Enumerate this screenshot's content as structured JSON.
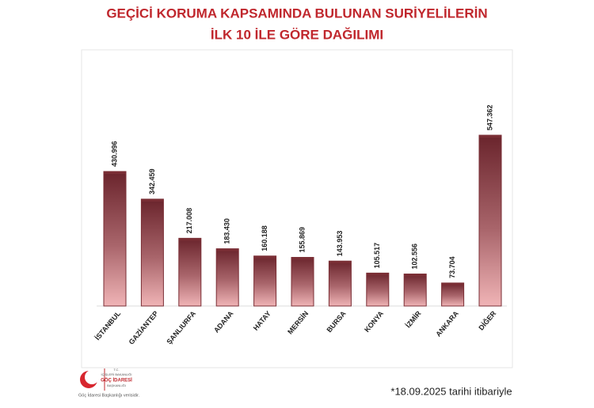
{
  "chart_data": {
    "type": "bar",
    "title": [
      "GEÇİCİ KORUMA KAPSAMINDA BULUNAN SURİYELİLERİN",
      "İLK 10 İLE GÖRE DAĞILIMI"
    ],
    "categories": [
      "İSTANBUL",
      "GAZİANTEP",
      "ŞANLIURFA",
      "ADANA",
      "HATAY",
      "MERSİN",
      "BURSA",
      "KONYA",
      "İZMİR",
      "ANKARA",
      "DİĞER"
    ],
    "values": [
      430996,
      342459,
      217008,
      183430,
      160188,
      155869,
      143953,
      105517,
      102556,
      73704,
      547362
    ],
    "value_labels": [
      "430.996",
      "342.459",
      "217.008",
      "183.430",
      "160.188",
      "155.869",
      "143.953",
      "105.517",
      "102.556",
      "73.704",
      "547.362"
    ],
    "color": "#7a2e35",
    "footnote": "*18.09.2025 tarihi itibariyle"
  },
  "logo": {
    "lines": [
      "T.C.",
      "İÇİŞLERİ BAKANLIĞI",
      "GÖÇ İDARESİ",
      "BAŞKANLIĞI"
    ],
    "caption": "Göç İdaresi Başkanlığı verisidir."
  }
}
